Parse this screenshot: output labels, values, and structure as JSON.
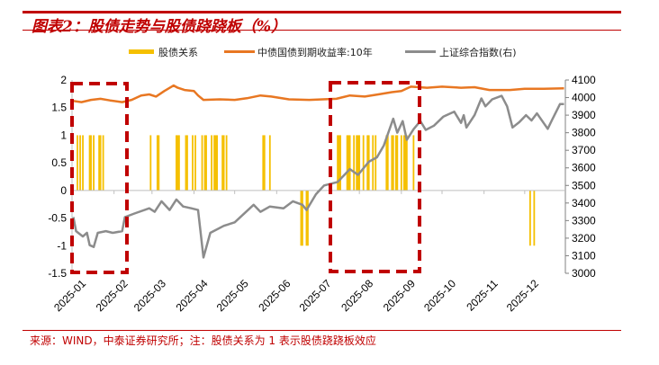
{
  "title": "图表2：股债走势与股债跷跷板（%）",
  "source": "来源：WIND，中泰证券研究所；注：股债关系为 1 表示股债跷跷板效应",
  "chart_data": {
    "type": "bar+line",
    "title": "图表2：股债走势与股债跷跷板（%）",
    "legend_position": "top",
    "grid": false,
    "x_tick_labels": [
      "2025-01",
      "2025-02",
      "2025-03",
      "2025-04",
      "2025-05",
      "2025-06",
      "2025-07",
      "2025-08",
      "2025-09",
      "2025-10",
      "2025-11",
      "2025-12"
    ],
    "xlim": [
      "2025-01-01",
      "2025-12-31"
    ],
    "y_left": {
      "lim": [
        -1.5,
        2
      ],
      "ticks": [
        2,
        1.5,
        1,
        0.5,
        0,
        -0.5,
        -1,
        -1.5
      ]
    },
    "y_right": {
      "lim": [
        3000,
        4100
      ],
      "ticks": [
        4100,
        4000,
        3900,
        3800,
        3700,
        3600,
        3500,
        3400,
        3300,
        3200,
        3100,
        3000
      ]
    },
    "series": [
      {
        "name": "股债关系",
        "type": "bar",
        "axis": "left",
        "color": "#f5c000",
        "points": [
          [
            "2025-01-05",
            1
          ],
          [
            "2025-01-07",
            1
          ],
          [
            "2025-01-09",
            1
          ],
          [
            "2025-01-14",
            1
          ],
          [
            "2025-01-15",
            1
          ],
          [
            "2025-01-17",
            1
          ],
          [
            "2025-01-21",
            1
          ],
          [
            "2025-01-22",
            1
          ],
          [
            "2025-01-24",
            1
          ],
          [
            "2025-02-28",
            1
          ],
          [
            "2025-03-05",
            1
          ],
          [
            "2025-03-06",
            1
          ],
          [
            "2025-03-19",
            1
          ],
          [
            "2025-03-20",
            1
          ],
          [
            "2025-03-21",
            1
          ],
          [
            "2025-03-26",
            1
          ],
          [
            "2025-03-27",
            1
          ],
          [
            "2025-03-31",
            1
          ],
          [
            "2025-04-02",
            1
          ],
          [
            "2025-04-07",
            1
          ],
          [
            "2025-04-09",
            1
          ],
          [
            "2025-04-10",
            1
          ],
          [
            "2025-04-14",
            1
          ],
          [
            "2025-04-16",
            1
          ],
          [
            "2025-04-17",
            1
          ],
          [
            "2025-04-18",
            1
          ],
          [
            "2025-04-22",
            1
          ],
          [
            "2025-04-23",
            1
          ],
          [
            "2025-04-25",
            1
          ],
          [
            "2025-05-22",
            1
          ],
          [
            "2025-05-23",
            1
          ],
          [
            "2025-05-27",
            1
          ],
          [
            "2025-06-19",
            -1
          ],
          [
            "2025-06-20",
            -1
          ],
          [
            "2025-06-23",
            -1
          ],
          [
            "2025-06-24",
            -1
          ],
          [
            "2025-07-16",
            1
          ],
          [
            "2025-07-17",
            1
          ],
          [
            "2025-07-18",
            1
          ],
          [
            "2025-07-23",
            1
          ],
          [
            "2025-07-24",
            1
          ],
          [
            "2025-07-25",
            1
          ],
          [
            "2025-07-28",
            1
          ],
          [
            "2025-07-30",
            1
          ],
          [
            "2025-07-31",
            1
          ],
          [
            "2025-08-01",
            1
          ],
          [
            "2025-08-04",
            1
          ],
          [
            "2025-08-07",
            1
          ],
          [
            "2025-08-08",
            1
          ],
          [
            "2025-08-11",
            1
          ],
          [
            "2025-08-13",
            1
          ],
          [
            "2025-08-21",
            1
          ],
          [
            "2025-08-22",
            1
          ],
          [
            "2025-08-25",
            1
          ],
          [
            "2025-08-26",
            1
          ],
          [
            "2025-08-28",
            1
          ],
          [
            "2025-08-29",
            1
          ],
          [
            "2025-09-01",
            1
          ],
          [
            "2025-09-03",
            1
          ],
          [
            "2025-09-04",
            1
          ],
          [
            "2025-09-05",
            1
          ],
          [
            "2025-09-10",
            1
          ],
          [
            "2025-12-05",
            -1
          ],
          [
            "2025-12-08",
            -1
          ]
        ]
      },
      {
        "name": "中债国债到期收益率:10年",
        "type": "line",
        "axis": "left",
        "color": "#e87722",
        "points": [
          [
            "2025-01-02",
            1.62
          ],
          [
            "2025-01-08",
            1.6
          ],
          [
            "2025-01-15",
            1.64
          ],
          [
            "2025-01-22",
            1.66
          ],
          [
            "2025-01-29",
            1.63
          ],
          [
            "2025-02-07",
            1.6
          ],
          [
            "2025-02-14",
            1.64
          ],
          [
            "2025-02-21",
            1.72
          ],
          [
            "2025-02-27",
            1.74
          ],
          [
            "2025-03-04",
            1.7
          ],
          [
            "2025-03-10",
            1.8
          ],
          [
            "2025-03-17",
            1.9
          ],
          [
            "2025-03-20",
            1.86
          ],
          [
            "2025-03-25",
            1.82
          ],
          [
            "2025-04-01",
            1.8
          ],
          [
            "2025-04-04",
            1.72
          ],
          [
            "2025-04-08",
            1.64
          ],
          [
            "2025-04-20",
            1.65
          ],
          [
            "2025-05-01",
            1.64
          ],
          [
            "2025-05-10",
            1.67
          ],
          [
            "2025-05-20",
            1.72
          ],
          [
            "2025-05-28",
            1.7
          ],
          [
            "2025-06-10",
            1.65
          ],
          [
            "2025-06-25",
            1.64
          ],
          [
            "2025-07-05",
            1.65
          ],
          [
            "2025-07-15",
            1.66
          ],
          [
            "2025-07-25",
            1.72
          ],
          [
            "2025-08-05",
            1.7
          ],
          [
            "2025-08-15",
            1.74
          ],
          [
            "2025-08-25",
            1.78
          ],
          [
            "2025-09-01",
            1.8
          ],
          [
            "2025-09-08",
            1.88
          ],
          [
            "2025-09-20",
            1.86
          ],
          [
            "2025-10-01",
            1.88
          ],
          [
            "2025-10-15",
            1.86
          ],
          [
            "2025-10-25",
            1.87
          ],
          [
            "2025-11-05",
            1.82
          ],
          [
            "2025-11-20",
            1.82
          ],
          [
            "2025-12-01",
            1.84
          ],
          [
            "2025-12-15",
            1.84
          ],
          [
            "2025-12-30",
            1.85
          ]
        ]
      },
      {
        "name": "上证综合指数(右)",
        "type": "line",
        "axis": "right",
        "color": "#8c8c8c",
        "points": [
          [
            "2025-01-02",
            3320
          ],
          [
            "2025-01-04",
            3240
          ],
          [
            "2025-01-09",
            3210
          ],
          [
            "2025-01-12",
            3230
          ],
          [
            "2025-01-14",
            3160
          ],
          [
            "2025-01-17",
            3150
          ],
          [
            "2025-01-20",
            3230
          ],
          [
            "2025-01-26",
            3240
          ],
          [
            "2025-01-31",
            3230
          ],
          [
            "2025-02-07",
            3240
          ],
          [
            "2025-02-09",
            3320
          ],
          [
            "2025-02-16",
            3340
          ],
          [
            "2025-02-27",
            3370
          ],
          [
            "2025-03-03",
            3350
          ],
          [
            "2025-03-08",
            3410
          ],
          [
            "2025-03-14",
            3360
          ],
          [
            "2025-03-19",
            3420
          ],
          [
            "2025-03-24",
            3380
          ],
          [
            "2025-03-30",
            3370
          ],
          [
            "2025-04-04",
            3360
          ],
          [
            "2025-04-08",
            3090
          ],
          [
            "2025-04-13",
            3230
          ],
          [
            "2025-04-23",
            3270
          ],
          [
            "2025-05-01",
            3290
          ],
          [
            "2025-05-15",
            3390
          ],
          [
            "2025-05-20",
            3350
          ],
          [
            "2025-05-27",
            3380
          ],
          [
            "2025-06-06",
            3370
          ],
          [
            "2025-06-13",
            3410
          ],
          [
            "2025-06-20",
            3390
          ],
          [
            "2025-06-23",
            3360
          ],
          [
            "2025-06-30",
            3450
          ],
          [
            "2025-07-06",
            3500
          ],
          [
            "2025-07-16",
            3520
          ],
          [
            "2025-07-25",
            3593
          ],
          [
            "2025-07-31",
            3560
          ],
          [
            "2025-08-08",
            3635
          ],
          [
            "2025-08-14",
            3660
          ],
          [
            "2025-08-19",
            3727
          ],
          [
            "2025-08-26",
            3880
          ],
          [
            "2025-08-29",
            3800
          ],
          [
            "2025-09-02",
            3866
          ],
          [
            "2025-09-05",
            3760
          ],
          [
            "2025-09-10",
            3820
          ],
          [
            "2025-09-15",
            3866
          ],
          [
            "2025-09-19",
            3816
          ],
          [
            "2025-09-25",
            3840
          ],
          [
            "2025-10-02",
            3892
          ],
          [
            "2025-10-10",
            3920
          ],
          [
            "2025-10-15",
            3856
          ],
          [
            "2025-10-17",
            3900
          ],
          [
            "2025-10-19",
            3830
          ],
          [
            "2025-10-25",
            3900
          ],
          [
            "2025-10-30",
            3995
          ],
          [
            "2025-11-02",
            3950
          ],
          [
            "2025-11-07",
            3990
          ],
          [
            "2025-11-14",
            4010
          ],
          [
            "2025-11-18",
            3950
          ],
          [
            "2025-11-22",
            3830
          ],
          [
            "2025-11-27",
            3860
          ],
          [
            "2025-12-02",
            3900
          ],
          [
            "2025-12-06",
            3870
          ],
          [
            "2025-12-10",
            3910
          ],
          [
            "2025-12-14",
            3866
          ],
          [
            "2025-12-18",
            3822
          ],
          [
            "2025-12-21",
            3870
          ],
          [
            "2025-12-27",
            3963
          ],
          [
            "2025-12-30",
            3963
          ]
        ]
      }
    ]
  }
}
